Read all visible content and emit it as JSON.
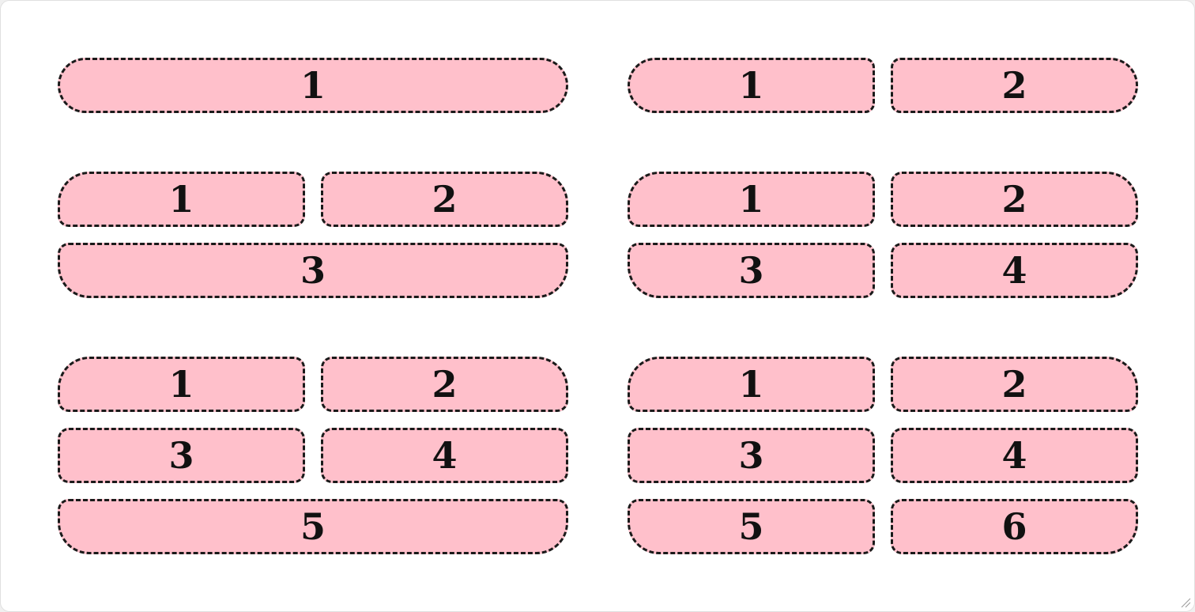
{
  "colors": {
    "cell_fill": "#ffc0cb",
    "border": "#1a1a1a"
  },
  "groups": {
    "g1": [
      "1"
    ],
    "g2": [
      "1",
      "2"
    ],
    "g3": [
      "1",
      "2",
      "3"
    ],
    "g4": [
      "1",
      "2",
      "3",
      "4"
    ],
    "g5": [
      "1",
      "2",
      "3",
      "4",
      "5"
    ],
    "g6": [
      "1",
      "2",
      "3",
      "4",
      "5",
      "6"
    ]
  }
}
